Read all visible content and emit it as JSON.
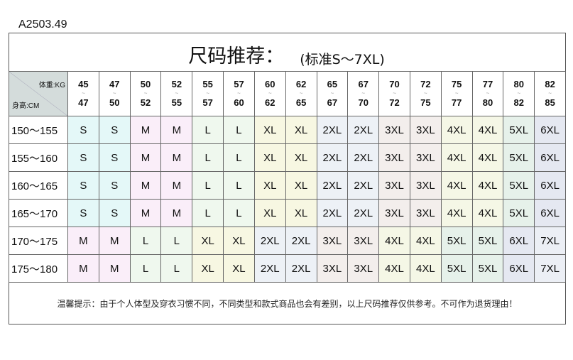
{
  "code": "A2503.49",
  "title": {
    "main": "尺码推荐：",
    "sub": "(标准S～7XL)"
  },
  "corner": {
    "weight_label": "体重:KG",
    "height_label": "身高:CM"
  },
  "tilde": "~",
  "weight_ranges": [
    [
      "45",
      "47"
    ],
    [
      "47",
      "50"
    ],
    [
      "50",
      "52"
    ],
    [
      "52",
      "55"
    ],
    [
      "55",
      "57"
    ],
    [
      "57",
      "60"
    ],
    [
      "60",
      "62"
    ],
    [
      "62",
      "65"
    ],
    [
      "65",
      "67"
    ],
    [
      "67",
      "70"
    ],
    [
      "70",
      "72"
    ],
    [
      "72",
      "75"
    ],
    [
      "75",
      "77"
    ],
    [
      "77",
      "80"
    ],
    [
      "80",
      "82"
    ],
    [
      "82",
      "85"
    ]
  ],
  "rows": [
    {
      "height": "150～155",
      "sizes": [
        "S",
        "S",
        "M",
        "M",
        "L",
        "L",
        "XL",
        "XL",
        "2XL",
        "2XL",
        "3XL",
        "3XL",
        "4XL",
        "4XL",
        "5XL",
        "6XL"
      ]
    },
    {
      "height": "155～160",
      "sizes": [
        "S",
        "S",
        "M",
        "M",
        "L",
        "L",
        "XL",
        "XL",
        "2XL",
        "2XL",
        "3XL",
        "3XL",
        "4XL",
        "4XL",
        "5XL",
        "6XL"
      ]
    },
    {
      "height": "160～165",
      "sizes": [
        "S",
        "S",
        "M",
        "M",
        "L",
        "L",
        "XL",
        "XL",
        "2XL",
        "2XL",
        "3XL",
        "3XL",
        "4XL",
        "4XL",
        "5XL",
        "6XL"
      ]
    },
    {
      "height": "165～170",
      "sizes": [
        "S",
        "S",
        "M",
        "M",
        "L",
        "L",
        "XL",
        "XL",
        "2XL",
        "2XL",
        "3XL",
        "3XL",
        "4XL",
        "4XL",
        "5XL",
        "6XL"
      ]
    },
    {
      "height": "170～175",
      "sizes": [
        "M",
        "M",
        "L",
        "L",
        "XL",
        "XL",
        "2XL",
        "2XL",
        "3XL",
        "3XL",
        "4XL",
        "4XL",
        "5XL",
        "5XL",
        "6XL",
        "7XL"
      ]
    },
    {
      "height": "175～180",
      "sizes": [
        "M",
        "M",
        "L",
        "L",
        "XL",
        "XL",
        "2XL",
        "2XL",
        "3XL",
        "3XL",
        "4XL",
        "4XL",
        "5XL",
        "5XL",
        "6XL",
        "7XL"
      ]
    }
  ],
  "size_colors": {
    "S": "#e4f8f8",
    "M": "#faeef9",
    "L": "#eff8ee",
    "XL": "#f7f7e2",
    "2XL": "#edf1f6",
    "3XL": "#f3eeec",
    "4XL": "#f5f7e6",
    "5XL": "#e6f1ea",
    "6XL": "#e5e8f1",
    "7XL": "#eceff5"
  },
  "tip": "温馨提示：由于个人体型及穿衣习惯不同，不同类型和款式商品也会有差别，以上尺码推荐仅供参考。不可作为退货理由！"
}
